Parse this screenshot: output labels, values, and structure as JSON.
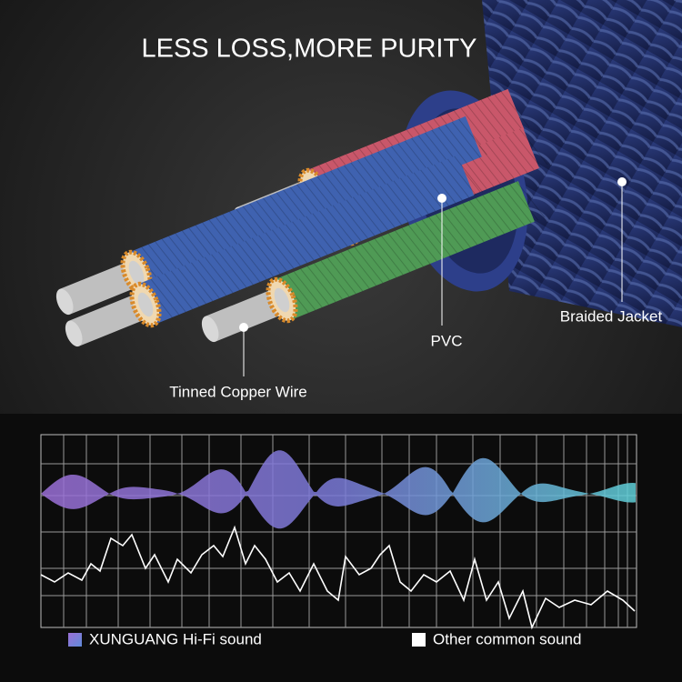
{
  "header": {
    "title": "LESS LOSS,MORE PURITY"
  },
  "callouts": [
    {
      "label": "Braided Jacket"
    },
    {
      "label": "PVC"
    },
    {
      "label": "Tinned Copper Wire"
    }
  ],
  "legend": [
    {
      "label": "XUNGUANG Hi-Fi sound"
    },
    {
      "label": "Other common sound"
    }
  ]
}
